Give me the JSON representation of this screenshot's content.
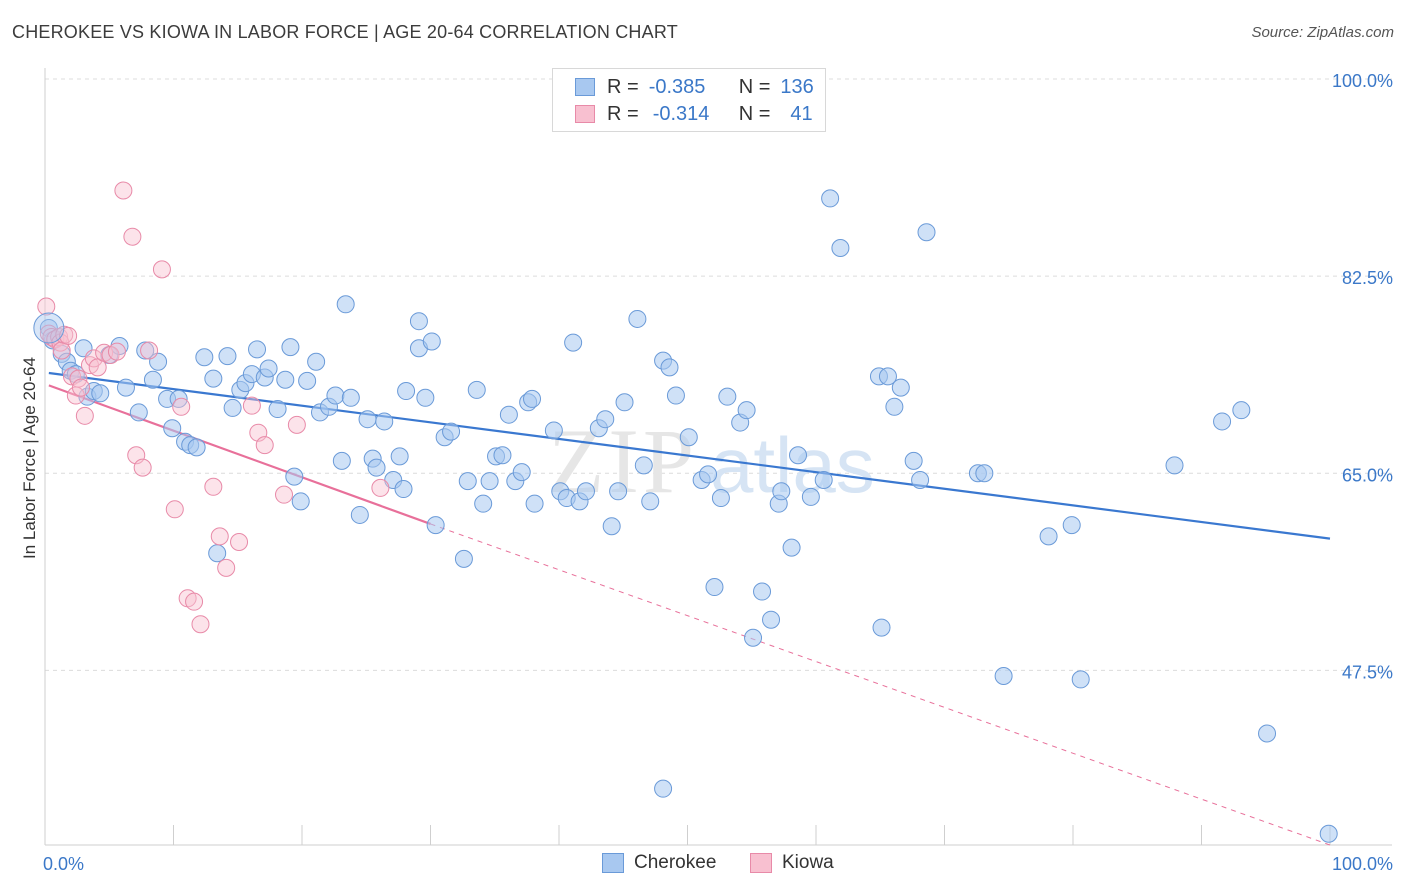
{
  "header": {
    "title": "CHEROKEE VS KIOWA IN LABOR FORCE | AGE 20-64 CORRELATION CHART",
    "source": "Source: ZipAtlas.com"
  },
  "watermark": {
    "text_zip": "ZIP",
    "text_atlas": "atlas"
  },
  "legend": {
    "rows": [
      {
        "r_label": "R =",
        "r_value": "-0.385",
        "n_label": "N =",
        "n_value": "136",
        "color": "#a8c8f0",
        "border": "#6a9ad8"
      },
      {
        "r_label": "R =",
        "r_value": "-0.314",
        "n_label": "N =",
        "n_value": "41",
        "color": "#f8c0d0",
        "border": "#e88aa8"
      }
    ]
  },
  "bottom_legend": [
    {
      "label": "Cherokee",
      "color": "#a8c8f0",
      "border": "#6a9ad8"
    },
    {
      "label": "Kiowa",
      "color": "#f8c0d0",
      "border": "#e88aa8"
    }
  ],
  "chart_data": {
    "type": "scatter",
    "title": "CHEROKEE VS KIOWA IN LABOR FORCE | AGE 20-64 CORRELATION CHART",
    "xlabel": "",
    "ylabel": "In Labor Force | Age 20-64",
    "xlim": [
      0,
      100
    ],
    "ylim": [
      32,
      100
    ],
    "x_tick_labels": [
      "0.0%",
      "100.0%"
    ],
    "y_ticks": [
      47.5,
      65.0,
      82.5,
      100.0
    ],
    "y_tick_labels": [
      "47.5%",
      "65.0%",
      "82.5%",
      "100.0%"
    ],
    "grid": true,
    "colors": {
      "cherokee": "#3a78d0",
      "kiowa": "#e8709a"
    },
    "series": [
      {
        "name": "Cherokee",
        "trend": {
          "x": [
            0.3,
            100
          ],
          "y": [
            73.9,
            59.2
          ]
        },
        "points": [
          [
            0.3,
            77.9
          ],
          [
            0.6,
            76.8
          ],
          [
            1.3,
            75.6
          ],
          [
            1.7,
            74.9
          ],
          [
            2.0,
            74.1
          ],
          [
            2.4,
            73.8
          ],
          [
            3.0,
            76.1
          ],
          [
            3.3,
            71.8
          ],
          [
            3.8,
            72.3
          ],
          [
            4.3,
            72.1
          ],
          [
            5.0,
            75.5
          ],
          [
            5.8,
            76.3
          ],
          [
            6.3,
            72.6
          ],
          [
            7.3,
            70.4
          ],
          [
            7.8,
            75.9
          ],
          [
            8.4,
            73.3
          ],
          [
            8.8,
            74.9
          ],
          [
            9.5,
            71.6
          ],
          [
            9.9,
            69.0
          ],
          [
            10.4,
            71.6
          ],
          [
            10.9,
            67.8
          ],
          [
            11.3,
            67.5
          ],
          [
            11.8,
            67.3
          ],
          [
            12.4,
            75.3
          ],
          [
            13.1,
            73.4
          ],
          [
            13.4,
            57.9
          ],
          [
            14.2,
            75.4
          ],
          [
            14.6,
            70.8
          ],
          [
            15.2,
            72.4
          ],
          [
            15.6,
            73.0
          ],
          [
            16.1,
            73.8
          ],
          [
            16.5,
            76.0
          ],
          [
            17.1,
            73.5
          ],
          [
            17.4,
            74.3
          ],
          [
            18.1,
            70.7
          ],
          [
            18.7,
            73.3
          ],
          [
            19.1,
            76.2
          ],
          [
            19.4,
            64.7
          ],
          [
            19.9,
            62.5
          ],
          [
            20.4,
            73.2
          ],
          [
            21.1,
            74.9
          ],
          [
            21.4,
            70.4
          ],
          [
            22.1,
            70.9
          ],
          [
            22.6,
            71.9
          ],
          [
            23.1,
            66.1
          ],
          [
            23.4,
            80.0
          ],
          [
            23.8,
            71.7
          ],
          [
            24.5,
            61.3
          ],
          [
            25.1,
            69.8
          ],
          [
            25.5,
            66.3
          ],
          [
            25.8,
            65.5
          ],
          [
            26.4,
            69.6
          ],
          [
            27.1,
            64.4
          ],
          [
            27.6,
            66.5
          ],
          [
            27.9,
            63.6
          ],
          [
            28.1,
            72.3
          ],
          [
            29.1,
            78.5
          ],
          [
            29.1,
            76.1
          ],
          [
            29.6,
            71.7
          ],
          [
            30.1,
            76.7
          ],
          [
            30.4,
            60.4
          ],
          [
            31.1,
            68.2
          ],
          [
            31.6,
            68.7
          ],
          [
            32.6,
            57.4
          ],
          [
            32.9,
            64.3
          ],
          [
            33.6,
            72.4
          ],
          [
            34.1,
            62.3
          ],
          [
            34.6,
            64.3
          ],
          [
            35.1,
            66.5
          ],
          [
            35.6,
            66.6
          ],
          [
            36.1,
            70.2
          ],
          [
            36.6,
            64.3
          ],
          [
            37.1,
            65.1
          ],
          [
            37.6,
            71.3
          ],
          [
            37.9,
            71.6
          ],
          [
            38.1,
            62.3
          ],
          [
            39.6,
            68.8
          ],
          [
            40.1,
            63.4
          ],
          [
            40.6,
            62.8
          ],
          [
            41.1,
            76.6
          ],
          [
            41.6,
            62.5
          ],
          [
            42.1,
            63.4
          ],
          [
            43.1,
            69.0
          ],
          [
            43.6,
            69.8
          ],
          [
            44.1,
            60.3
          ],
          [
            44.6,
            63.4
          ],
          [
            45.1,
            71.3
          ],
          [
            46.1,
            78.7
          ],
          [
            46.6,
            65.7
          ],
          [
            47.1,
            62.5
          ],
          [
            48.1,
            75.0
          ],
          [
            48.6,
            74.4
          ],
          [
            49.1,
            71.9
          ],
          [
            50.1,
            68.2
          ],
          [
            51.1,
            64.4
          ],
          [
            51.6,
            64.9
          ],
          [
            52.1,
            54.9
          ],
          [
            52.6,
            62.8
          ],
          [
            53.1,
            71.8
          ],
          [
            54.1,
            69.5
          ],
          [
            54.6,
            70.6
          ],
          [
            55.1,
            50.4
          ],
          [
            55.8,
            54.5
          ],
          [
            56.5,
            52.0
          ],
          [
            57.1,
            62.3
          ],
          [
            57.3,
            63.4
          ],
          [
            58.1,
            58.4
          ],
          [
            58.6,
            66.6
          ],
          [
            59.6,
            62.9
          ],
          [
            60.6,
            64.4
          ],
          [
            64.9,
            73.6
          ],
          [
            65.6,
            73.6
          ],
          [
            66.1,
            70.9
          ],
          [
            66.6,
            72.6
          ],
          [
            67.6,
            66.1
          ],
          [
            68.1,
            64.4
          ],
          [
            72.6,
            65.0
          ],
          [
            73.1,
            65.0
          ],
          [
            74.6,
            47.0
          ],
          [
            78.1,
            59.4
          ],
          [
            79.9,
            60.4
          ],
          [
            80.6,
            46.7
          ],
          [
            87.9,
            65.7
          ],
          [
            91.6,
            69.6
          ],
          [
            93.1,
            70.6
          ],
          [
            95.1,
            41.9
          ],
          [
            99.9,
            33.0
          ],
          [
            61.1,
            89.4
          ],
          [
            65.1,
            51.3
          ],
          [
            68.6,
            86.4
          ],
          [
            48.1,
            37.0
          ],
          [
            61.9,
            85.0
          ]
        ]
      },
      {
        "name": "Kiowa",
        "trend": {
          "x": [
            0.3,
            30.0
          ],
          "y": [
            72.8,
            60.5
          ]
        },
        "trend_extension": {
          "x": [
            30.0,
            100
          ],
          "y": [
            60.5,
            32.0
          ]
        },
        "points": [
          [
            0.1,
            79.8
          ],
          [
            0.3,
            77.4
          ],
          [
            0.5,
            77.1
          ],
          [
            0.8,
            76.9
          ],
          [
            1.1,
            77.1
          ],
          [
            1.2,
            76.6
          ],
          [
            1.3,
            75.9
          ],
          [
            1.5,
            77.3
          ],
          [
            1.8,
            77.2
          ],
          [
            2.1,
            73.6
          ],
          [
            2.4,
            71.9
          ],
          [
            2.6,
            73.4
          ],
          [
            2.8,
            72.6
          ],
          [
            3.1,
            70.1
          ],
          [
            3.5,
            74.6
          ],
          [
            3.8,
            75.2
          ],
          [
            4.1,
            74.4
          ],
          [
            4.6,
            75.7
          ],
          [
            5.1,
            75.5
          ],
          [
            5.6,
            75.8
          ],
          [
            6.1,
            90.1
          ],
          [
            6.8,
            86.0
          ],
          [
            7.1,
            66.6
          ],
          [
            7.6,
            65.5
          ],
          [
            8.1,
            75.9
          ],
          [
            9.1,
            83.1
          ],
          [
            10.1,
            61.8
          ],
          [
            10.6,
            70.9
          ],
          [
            11.1,
            53.9
          ],
          [
            11.6,
            53.6
          ],
          [
            12.1,
            51.6
          ],
          [
            13.1,
            63.8
          ],
          [
            13.6,
            59.4
          ],
          [
            14.1,
            56.6
          ],
          [
            15.1,
            58.9
          ],
          [
            16.1,
            71.0
          ],
          [
            16.6,
            68.6
          ],
          [
            17.1,
            67.5
          ],
          [
            18.6,
            63.1
          ],
          [
            19.6,
            69.3
          ],
          [
            26.1,
            63.7
          ]
        ]
      }
    ]
  }
}
